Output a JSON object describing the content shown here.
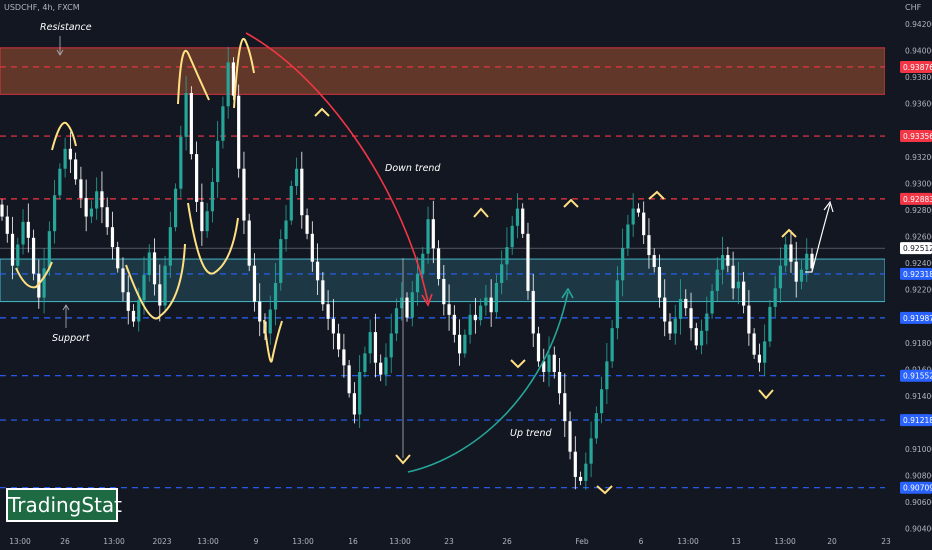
{
  "header": {
    "ticker": "USDCHF, 4h, FXCM",
    "unit": "CHF"
  },
  "brand": {
    "name": "TradingStat"
  },
  "chart_data": {
    "type": "candlestick",
    "title": "",
    "symbol": "USDCHF",
    "timeframe": "4h",
    "source": "FXCM",
    "ylim": [
      0.9024,
      0.9438
    ],
    "y_ticks": [
      0.904,
      0.906,
      0.908,
      0.91,
      0.912,
      0.914,
      0.916,
      0.918,
      0.922,
      0.924,
      0.926,
      0.928,
      0.93,
      0.932,
      0.936,
      0.938,
      0.94,
      0.942
    ],
    "x_ticks": [
      "13:00",
      "26",
      "13:00",
      "2023",
      "13:00",
      "9",
      "13:00",
      "16",
      "13:00",
      "23",
      "26",
      "Feb",
      "6",
      "13:00",
      "13",
      "13:00",
      "20",
      "23"
    ],
    "price_labels": [
      {
        "value": 0.93876,
        "text": "0.93876",
        "color": "#f23645"
      },
      {
        "value": 0.93356,
        "text": "0.93356",
        "color": "#f23645"
      },
      {
        "value": 0.92883,
        "text": "0.92883",
        "color": "#f23645"
      },
      {
        "value": 0.92512,
        "text": "0.92512",
        "color": "#ffffff"
      },
      {
        "value": 0.92318,
        "text": "0.92318",
        "color": "#2962ff"
      },
      {
        "value": 0.91987,
        "text": "0.91987",
        "color": "#2962ff"
      },
      {
        "value": 0.91552,
        "text": "0.91552",
        "color": "#2962ff"
      },
      {
        "value": 0.91218,
        "text": "0.91218",
        "color": "#2962ff"
      },
      {
        "value": 0.90709,
        "text": "0.90709",
        "color": "#2962ff"
      }
    ],
    "zones": [
      {
        "label": "Resistance",
        "from": 0.9367,
        "to": 0.9402,
        "color": "#f23645"
      },
      {
        "label": "Support",
        "from": 0.9211,
        "to": 0.9243,
        "color": "#4dd0e1"
      }
    ],
    "annotations": [
      "Resistance",
      "Support",
      "Down trend",
      "Up trend"
    ],
    "colors": {
      "up": "#26a69a",
      "down": "#ffffff",
      "resistance": "#f23645",
      "support_line": "#2962ff",
      "swing": "#ffe082"
    },
    "closes": [
      [
        0.9275,
        0.9262,
        0.9238,
        0.9254,
        0.9271,
        0.9259,
        0.9232,
        0.9214,
        0.9236,
        0.9264,
        0.9291,
        0.9311,
        0.9326,
        0.9318,
        0.9303,
        0.9289,
        0.9275,
        0.9281,
        0.9294,
        0.9282,
        0.9267
      ],
      [
        0.9252,
        0.9236,
        0.9218,
        0.9204,
        0.9196,
        0.9212,
        0.9231,
        0.9248,
        0.9224,
        0.9208,
        0.9238,
        0.9267,
        0.9296,
        0.9335,
        0.9368,
        0.9322,
        0.9286,
        0.9264,
        0.9279,
        0.9301,
        0.9332
      ],
      [
        0.9358,
        0.9391,
        0.9366,
        0.9311,
        0.9272,
        0.9238,
        0.9211,
        0.9196,
        0.9187,
        0.9205,
        0.9225,
        0.9258,
        0.9272,
        0.9298,
        0.9311,
        0.9276,
        0.9262,
        0.9241,
        0.9227,
        0.9209,
        0.9198
      ],
      [
        0.9187,
        0.9175,
        0.9163,
        0.9142,
        0.9126,
        0.9158,
        0.9172,
        0.9188,
        0.9165,
        0.9156,
        0.9169,
        0.9187,
        0.9206,
        0.9214,
        0.9199,
        0.9218,
        0.9232,
        0.9247,
        0.9273,
        0.9251,
        0.9228
      ],
      [
        0.9209,
        0.9201,
        0.9186,
        0.9172,
        0.9186,
        0.9201,
        0.9197,
        0.9208,
        0.9214,
        0.9203,
        0.9225,
        0.9239,
        0.9252,
        0.9268,
        0.9281,
        0.9262,
        0.9219,
        0.9187,
        0.9166,
        0.9158,
        0.9171
      ],
      [
        0.9158,
        0.9142,
        0.9121,
        0.9098,
        0.9079,
        0.9076,
        0.9089,
        0.9108,
        0.9127,
        0.9145,
        0.9166,
        0.9191,
        0.9227,
        0.9251,
        0.9269,
        0.9281,
        0.9278,
        0.9261,
        0.9246,
        0.9237,
        0.9214
      ],
      [
        0.9196,
        0.9187,
        0.9198,
        0.9213,
        0.9206,
        0.9191,
        0.9178,
        0.9189,
        0.9202,
        0.9219,
        0.9235,
        0.9246,
        0.9238,
        0.9221,
        0.9226,
        0.9208,
        0.9187,
        0.9171,
        0.9165,
        0.9181,
        0.9207
      ],
      [
        0.9221,
        0.9238,
        0.9254,
        0.9241,
        0.9226,
        0.9235,
        0.9247,
        0.9236
      ]
    ]
  }
}
